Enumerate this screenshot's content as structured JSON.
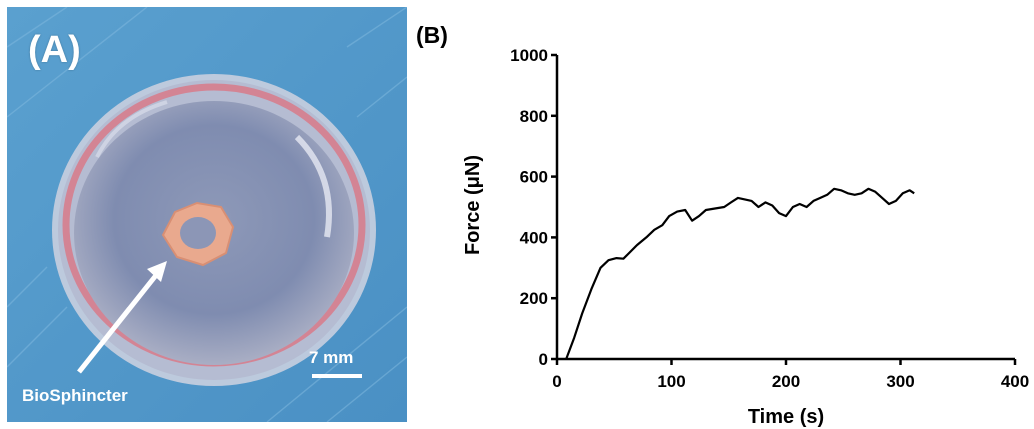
{
  "panel_a": {
    "label": "(A)",
    "scale_label": "7 mm",
    "annotation": "BioSphincter"
  },
  "panel_b": {
    "label": "(B)"
  },
  "chart_data": {
    "type": "line",
    "title": "",
    "xlabel": "Time (s)",
    "ylabel": "Force (μN)",
    "xlim": [
      0,
      400
    ],
    "ylim": [
      0,
      1000
    ],
    "xticks": [
      0,
      100,
      200,
      300,
      400
    ],
    "yticks": [
      0,
      200,
      400,
      600,
      800,
      1000
    ],
    "grid": false,
    "series": [
      {
        "color": "#000000",
        "x": [
          8,
          15,
          22,
          30,
          38,
          45,
          52,
          58,
          62,
          70,
          78,
          85,
          92,
          98,
          105,
          112,
          118,
          124,
          130,
          138,
          146,
          152,
          158,
          164,
          170,
          176,
          182,
          188,
          194,
          200,
          206,
          212,
          218,
          224,
          230,
          236,
          242,
          248,
          254,
          260,
          266,
          272,
          278,
          284,
          290,
          296,
          302,
          308,
          312
        ],
        "y": [
          0,
          70,
          150,
          230,
          300,
          325,
          332,
          330,
          345,
          375,
          400,
          425,
          440,
          470,
          485,
          490,
          455,
          470,
          490,
          495,
          500,
          515,
          530,
          525,
          520,
          500,
          515,
          505,
          480,
          470,
          500,
          510,
          500,
          520,
          530,
          540,
          560,
          555,
          545,
          540,
          545,
          560,
          550,
          530,
          510,
          520,
          545,
          555,
          545
        ]
      }
    ]
  }
}
